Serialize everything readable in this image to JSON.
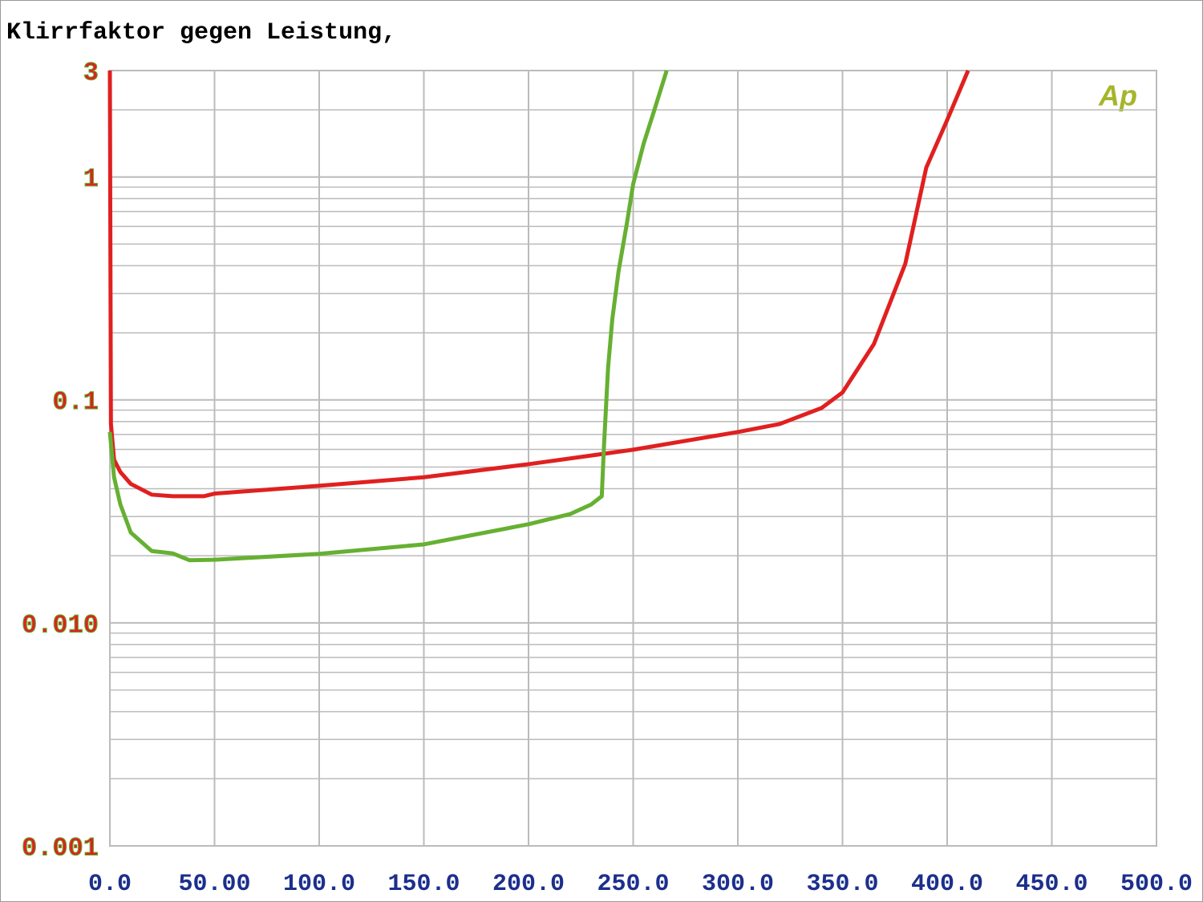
{
  "chart_data": {
    "type": "line",
    "title": "Klirrfaktor gegen Leistung,",
    "logo": "Ap",
    "log_y": true,
    "grid": true,
    "minor_grid": true,
    "xlim": [
      0,
      500
    ],
    "ylim": [
      0.001,
      3
    ],
    "xticks": [
      {
        "value": 0,
        "label": "0.0"
      },
      {
        "value": 50,
        "label": "50.00"
      },
      {
        "value": 100,
        "label": "100.0"
      },
      {
        "value": 150,
        "label": "150.0"
      },
      {
        "value": 200,
        "label": "200.0"
      },
      {
        "value": 250,
        "label": "250.0"
      },
      {
        "value": 300,
        "label": "300.0"
      },
      {
        "value": 350,
        "label": "350.0"
      },
      {
        "value": 400,
        "label": "400.0"
      },
      {
        "value": 450,
        "label": "450.0"
      },
      {
        "value": 500,
        "label": "500.0"
      }
    ],
    "yticks": [
      0.001,
      {
        "value": 0.01,
        "label": "0.010"
      },
      0.1,
      1,
      3
    ],
    "series": [
      {
        "color": "#e02020",
        "x": [
          0,
          0.5,
          2,
          5,
          10,
          20,
          30,
          45,
          50,
          100,
          150,
          200,
          250,
          300,
          320,
          340,
          350,
          365,
          380,
          390,
          400,
          410
        ],
        "values": [
          3,
          0.078,
          0.054,
          0.0475,
          0.042,
          0.0376,
          0.037,
          0.037,
          0.038,
          0.0412,
          0.045,
          0.0515,
          0.0598,
          0.0718,
          0.078,
          0.092,
          0.108,
          0.178,
          0.408,
          1.1,
          1.8,
          3
        ]
      },
      {
        "color": "#66b032",
        "x": [
          0,
          2,
          5,
          10,
          20,
          30,
          38,
          50,
          100,
          150,
          200,
          220,
          230,
          235,
          236,
          238,
          240,
          243,
          247,
          250,
          255,
          260,
          266
        ],
        "values": [
          0.0718,
          0.045,
          0.034,
          0.0254,
          0.021,
          0.0205,
          0.0191,
          0.0192,
          0.0204,
          0.0225,
          0.0277,
          0.0308,
          0.034,
          0.037,
          0.0609,
          0.139,
          0.229,
          0.377,
          0.62,
          0.93,
          1.41,
          1.98,
          3
        ]
      }
    ]
  }
}
